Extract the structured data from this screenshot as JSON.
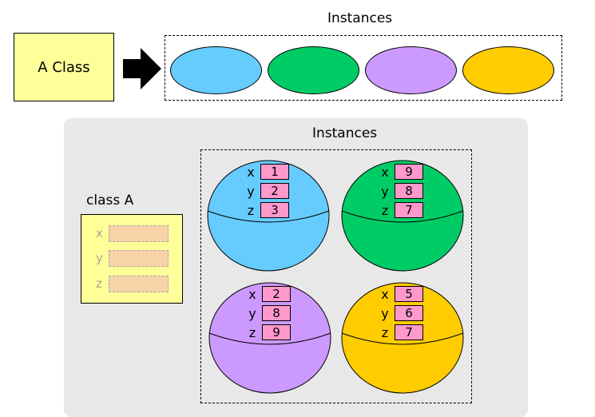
{
  "top": {
    "instances_title": "Instances",
    "class_label": "A Class",
    "ovals": [
      {
        "color": "#66ccff"
      },
      {
        "color": "#00cc66"
      },
      {
        "color": "#cc99ff"
      },
      {
        "color": "#ffcc00"
      }
    ]
  },
  "bottom": {
    "instances_title": "Instances",
    "class_title": "class A",
    "class_fields": [
      "x",
      "y",
      "z"
    ],
    "instances": [
      {
        "color": "#66ccff",
        "vars": [
          {
            "name": "x",
            "value": "1"
          },
          {
            "name": "y",
            "value": "2"
          },
          {
            "name": "z",
            "value": "3"
          }
        ]
      },
      {
        "color": "#00cc66",
        "vars": [
          {
            "name": "x",
            "value": "9"
          },
          {
            "name": "y",
            "value": "8"
          },
          {
            "name": "z",
            "value": "7"
          }
        ]
      },
      {
        "color": "#cc99ff",
        "vars": [
          {
            "name": "x",
            "value": "2"
          },
          {
            "name": "y",
            "value": "8"
          },
          {
            "name": "z",
            "value": "9"
          }
        ]
      },
      {
        "color": "#ffcc00",
        "vars": [
          {
            "name": "x",
            "value": "5"
          },
          {
            "name": "y",
            "value": "6"
          },
          {
            "name": "z",
            "value": "7"
          }
        ]
      }
    ]
  }
}
